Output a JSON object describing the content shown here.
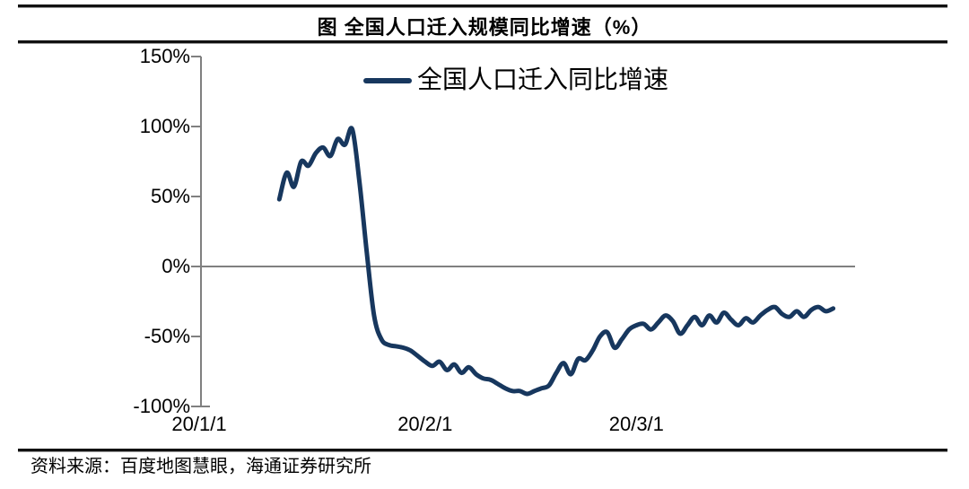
{
  "figure": {
    "title": "图 全国人口迁入规模同比增速（%）",
    "source_note": "资料来源：百度地图慧眼，海通证券研究所"
  },
  "legend": {
    "label": "全国人口迁入同比增速"
  },
  "colors": {
    "line": "#17375E",
    "axis": "#808080",
    "rule": "#111111",
    "text": "#000000",
    "background": "#FFFFFF"
  },
  "chart_data": {
    "type": "line",
    "title": "图 全国人口迁入规模同比增速（%）",
    "legend_position": "top-center",
    "grid": "zero-line-only",
    "y_axis": {
      "tick_labels": [
        "150%",
        "100%",
        "50%",
        "0%",
        "-50%",
        "-100%"
      ],
      "min": -100,
      "max": 150,
      "step": 50,
      "unit": "%",
      "zero_gridline": true
    },
    "x_axis": {
      "tick_labels": [
        "20/1/1",
        "20/2/1",
        "20/3/1"
      ],
      "tick_day_offsets": [
        0,
        31,
        60
      ],
      "axis_start": "20/1/1",
      "axis_end": "20/3/31",
      "axis_total_days": 90
    },
    "series": [
      {
        "name": "全国人口迁入同比增速",
        "unit": "%",
        "frequency": "daily",
        "start_date": "20/1/12",
        "start_day_offset": 11,
        "values": [
          48,
          67,
          57,
          75,
          72,
          81,
          85,
          79,
          91,
          87,
          98,
          60,
          10,
          -35,
          -52,
          -56,
          -57,
          -58,
          -60,
          -64,
          -68,
          -71,
          -68,
          -74,
          -70,
          -76,
          -72,
          -77,
          -80,
          -81,
          -84,
          -87,
          -89,
          -89,
          -91,
          -89,
          -87,
          -85,
          -76,
          -69,
          -77,
          -66,
          -67,
          -60,
          -50,
          -47,
          -58,
          -52,
          -45,
          -42,
          -41,
          -45,
          -40,
          -35,
          -39,
          -48,
          -42,
          -36,
          -42,
          -35,
          -40,
          -33,
          -38,
          -42,
          -37,
          -40,
          -35,
          -31,
          -29,
          -34,
          -36,
          -32,
          -36,
          -31,
          -29,
          -32,
          -30
        ]
      }
    ]
  }
}
